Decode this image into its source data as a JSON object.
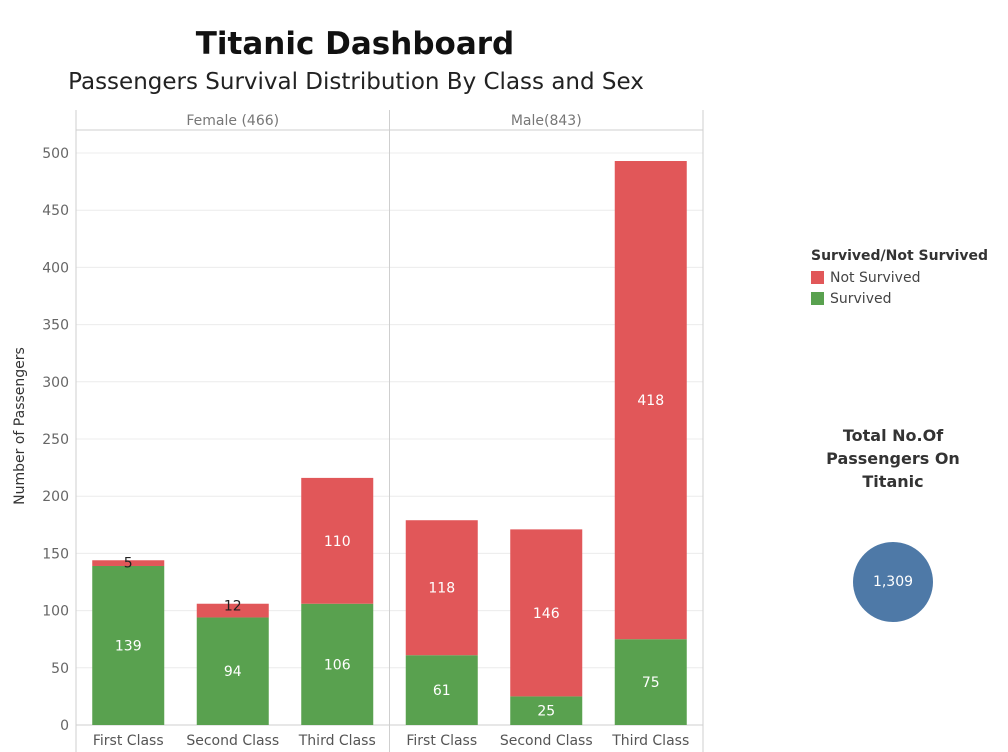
{
  "dashboard": {
    "title": "Titanic Dashboard",
    "subtitle": "Passengers Survival Distribution By Class and Sex"
  },
  "legend": {
    "title": "Survived/Not Survived",
    "items": [
      {
        "label": "Not Survived",
        "color": "#e15759"
      },
      {
        "label": "Survived",
        "color": "#59a14f"
      }
    ]
  },
  "total": {
    "label": "Total No.Of Passengers On Titanic",
    "value": "1,309",
    "color": "#4e79a7"
  },
  "chart_data": {
    "type": "bar",
    "stacked": true,
    "ylabel": "Number of Passengers",
    "ylim": [
      0,
      500
    ],
    "yticks": [
      0,
      50,
      100,
      150,
      200,
      250,
      300,
      350,
      400,
      450,
      500
    ],
    "grid": true,
    "legend_position": "right",
    "categories": [
      "First Class",
      "Second Class",
      "Third Class"
    ],
    "panels": [
      {
        "name": "Female (466)",
        "series": [
          {
            "name": "Survived",
            "color": "#59a14f",
            "values": [
              139,
              94,
              106
            ]
          },
          {
            "name": "Not Survived",
            "color": "#e15759",
            "values": [
              5,
              12,
              110
            ]
          }
        ]
      },
      {
        "name": "Male(843)",
        "series": [
          {
            "name": "Survived",
            "color": "#59a14f",
            "values": [
              61,
              25,
              75
            ]
          },
          {
            "name": "Not Survived",
            "color": "#e15759",
            "values": [
              118,
              146,
              418
            ]
          }
        ]
      }
    ]
  }
}
